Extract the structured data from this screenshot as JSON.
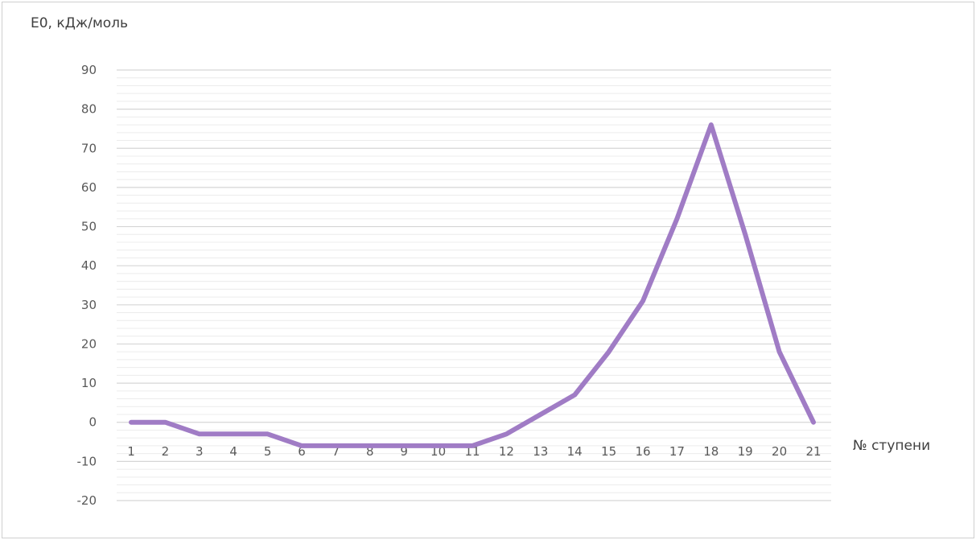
{
  "chart_data": {
    "type": "line",
    "ylabel": "Е0, кДж/моль",
    "xlabel": "№ ступени",
    "categories": [
      "1",
      "2",
      "3",
      "4",
      "5",
      "6",
      "7",
      "8",
      "9",
      "10",
      "11",
      "12",
      "13",
      "14",
      "15",
      "16",
      "17",
      "18",
      "19",
      "20",
      "21"
    ],
    "series": [
      {
        "values": [
          0,
          0,
          -3,
          -3,
          -3,
          -6,
          -6,
          -6,
          -6,
          -6,
          -6,
          -3,
          2,
          7,
          18,
          31,
          52,
          76,
          48,
          18,
          0
        ],
        "color": "#a07cc5"
      }
    ],
    "ylim": [
      -20,
      90
    ],
    "yticks": [
      90,
      80,
      70,
      60,
      50,
      40,
      30,
      20,
      10,
      0,
      -10,
      -20
    ],
    "grid": true
  }
}
